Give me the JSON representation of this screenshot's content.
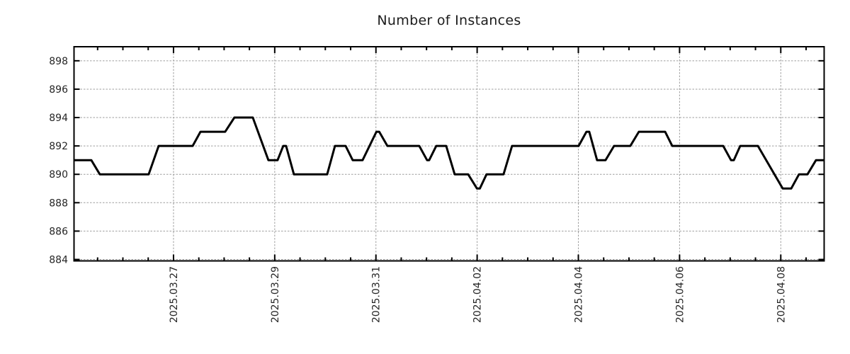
{
  "chart_data": {
    "type": "line",
    "title": "Number of Instances",
    "legend": false,
    "grid": true,
    "x_axis": {
      "epoch_label": "2025-03-25",
      "unit": "days",
      "range": [
        0.034,
        14.857
      ],
      "major_gridline_days": [
        2,
        4,
        6,
        8,
        10,
        12,
        14
      ],
      "tick_labels": [
        "2025.03.27",
        "2025.03.29",
        "2025.03.31",
        "2025.04.02",
        "2025.04.04",
        "2025.04.06",
        "2025.04.08"
      ],
      "minor_tick_interval_days": 0.5
    },
    "y_axis": {
      "range": [
        883.9,
        898.99
      ],
      "ticks": [
        884,
        886,
        888,
        890,
        892,
        894,
        896,
        898
      ]
    },
    "series": [
      {
        "name": "instances",
        "color": "#000000",
        "points": [
          [
            0.034,
            891
          ],
          [
            0.376,
            891
          ],
          [
            0.544,
            890
          ],
          [
            1.51,
            890
          ],
          [
            1.706,
            892
          ],
          [
            2.378,
            892
          ],
          [
            2.532,
            893
          ],
          [
            3.021,
            893
          ],
          [
            3.203,
            894
          ],
          [
            3.567,
            894
          ],
          [
            3.875,
            891
          ],
          [
            4.057,
            891
          ],
          [
            4.169,
            892
          ],
          [
            4.225,
            892
          ],
          [
            4.379,
            890
          ],
          [
            5.036,
            890
          ],
          [
            5.19,
            892
          ],
          [
            5.4,
            892
          ],
          [
            5.54,
            891
          ],
          [
            5.736,
            891
          ],
          [
            6.01,
            893
          ],
          [
            6.066,
            893
          ],
          [
            6.226,
            892
          ],
          [
            6.856,
            892
          ],
          [
            7.01,
            891
          ],
          [
            7.052,
            891
          ],
          [
            7.192,
            892
          ],
          [
            7.388,
            892
          ],
          [
            7.556,
            890
          ],
          [
            7.822,
            890
          ],
          [
            7.997,
            889
          ],
          [
            8.053,
            889
          ],
          [
            8.186,
            890
          ],
          [
            8.522,
            890
          ],
          [
            8.69,
            892
          ],
          [
            10.006,
            892
          ],
          [
            10.16,
            893
          ],
          [
            10.216,
            893
          ],
          [
            10.37,
            891
          ],
          [
            10.538,
            891
          ],
          [
            10.706,
            892
          ],
          [
            11.028,
            892
          ],
          [
            11.196,
            893
          ],
          [
            11.714,
            893
          ],
          [
            11.854,
            892
          ],
          [
            12.862,
            892
          ],
          [
            13.016,
            891
          ],
          [
            13.072,
            891
          ],
          [
            13.198,
            892
          ],
          [
            13.548,
            892
          ],
          [
            14.038,
            889
          ],
          [
            14.206,
            889
          ],
          [
            14.36,
            890
          ],
          [
            14.528,
            890
          ],
          [
            14.696,
            891
          ],
          [
            14.857,
            891
          ]
        ]
      }
    ],
    "colors": {
      "line": "#000000",
      "border": "#000000",
      "gridline": "#9e9e9e",
      "tick_text": "#262626",
      "background": "#ffffff"
    }
  }
}
